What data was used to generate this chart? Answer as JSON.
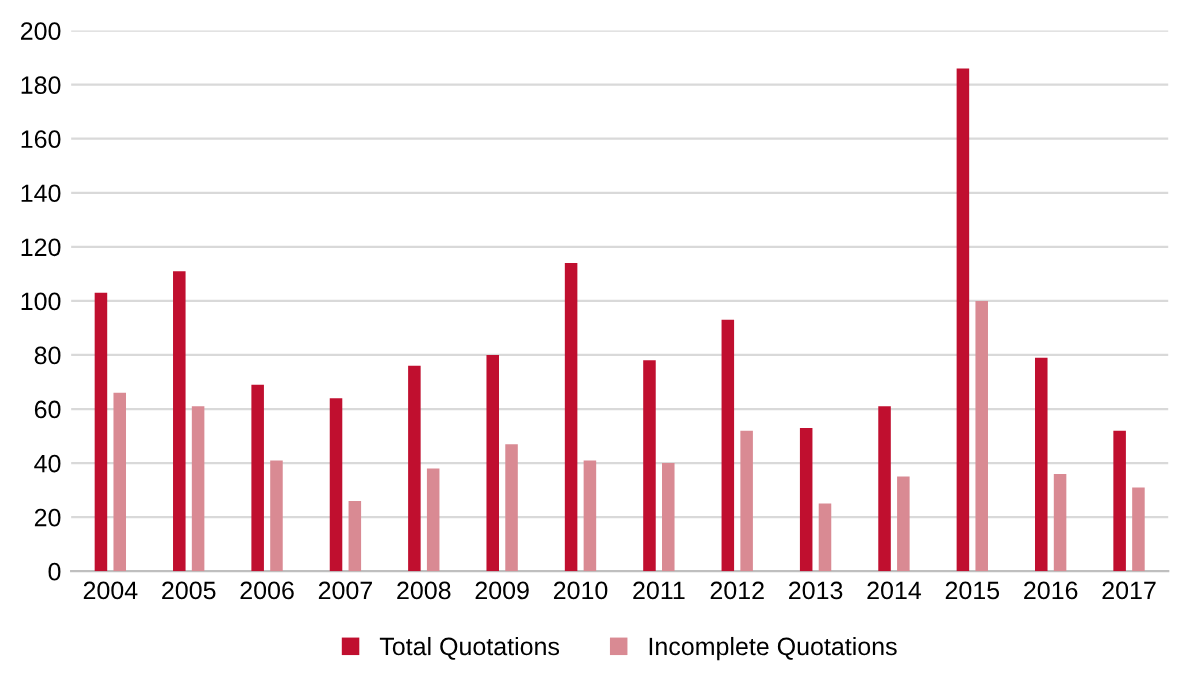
{
  "chart_data": {
    "type": "bar",
    "categories": [
      "2004",
      "2005",
      "2006",
      "2007",
      "2008",
      "2009",
      "2010",
      "2011",
      "2012",
      "2013",
      "2014",
      "2015",
      "2016",
      "2017"
    ],
    "series": [
      {
        "name": "Total Quotations",
        "color": "#c00f2f",
        "values": [
          103,
          111,
          69,
          64,
          76,
          80,
          114,
          78,
          93,
          53,
          61,
          186,
          79,
          52
        ]
      },
      {
        "name": "Incomplete Quotations",
        "color": "#d98a93",
        "values": [
          66,
          61,
          41,
          26,
          38,
          47,
          41,
          40,
          52,
          25,
          35,
          100,
          36,
          31
        ]
      }
    ],
    "ylim": [
      0,
      200
    ],
    "yticks": [
      0,
      20,
      40,
      60,
      80,
      100,
      120,
      140,
      160,
      180,
      200
    ],
    "grid": "y",
    "legend": "bottom"
  }
}
